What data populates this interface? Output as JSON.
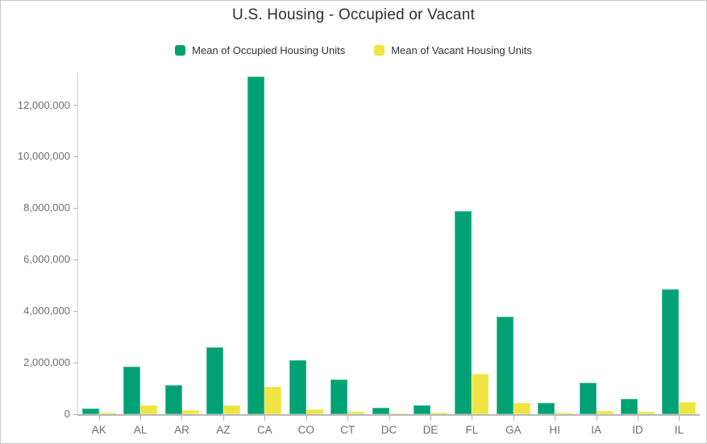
{
  "title": "U.S. Housing - Occupied or Vacant",
  "colors": {
    "occupied": "#00A173",
    "vacant": "#F0E442",
    "axis_line": "#cfcfcf",
    "baseline": "#b9b9b9",
    "tick": "#b3b3b3",
    "tick_label": "#6e6e6e",
    "title_text": "#2e2e2e",
    "legend_text": "#323232"
  },
  "legend": [
    {
      "label": "Mean of Occupied Housing Units",
      "series": "occupied"
    },
    {
      "label": "Mean of Vacant Housing Units",
      "series": "vacant"
    }
  ],
  "chart_data": {
    "type": "bar",
    "title": "U.S. Housing - Occupied or Vacant",
    "categories": [
      "AK",
      "AL",
      "AR",
      "AZ",
      "CA",
      "CO",
      "CT",
      "DC",
      "DE",
      "FL",
      "GA",
      "HI",
      "IA",
      "ID",
      "IL"
    ],
    "series": [
      {
        "name": "Mean of Occupied Housing Units",
        "color": "#00A173",
        "values": [
          220000,
          1850000,
          1130000,
          2610000,
          13100000,
          2090000,
          1350000,
          250000,
          330000,
          7890000,
          3780000,
          430000,
          1230000,
          610000,
          4840000
        ]
      },
      {
        "name": "Mean of Vacant Housing Units",
        "color": "#F0E442",
        "values": [
          60000,
          330000,
          170000,
          360000,
          1060000,
          190000,
          100000,
          30000,
          60000,
          1570000,
          450000,
          70000,
          120000,
          90000,
          470000
        ]
      }
    ],
    "xlabel": "",
    "ylabel": "",
    "ylim": [
      0,
      13270000
    ],
    "yticks": [
      0,
      2000000,
      4000000,
      6000000,
      8000000,
      10000000,
      12000000
    ],
    "grid": false,
    "legend_position": "top"
  }
}
